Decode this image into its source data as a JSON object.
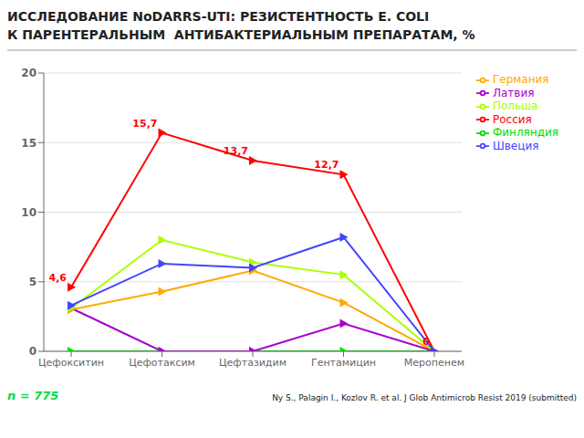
{
  "chart_data": {
    "type": "line",
    "title": "ИССЛЕДОВАНИЕ NoDARRS-UTI: РЕЗИСТЕНТНОСТЬ E. COLI",
    "subtitle": "К ПАРЕНТЕРАЛЬНЫМ  АНТИБАКТЕРИАЛЬНЫМ ПРЕПАРАТАМ, %",
    "categories": [
      "Цефокситин",
      "Цефотаксим",
      "Цефтазидим",
      "Гентамицин",
      "Меропенем"
    ],
    "series": [
      {
        "name": "Финляндия",
        "color": "#00dd00",
        "marker": "triangle_right",
        "values": [
          0.0,
          0.0,
          0.0,
          0.0,
          0.0
        ]
      },
      {
        "name": "Германия",
        "color": "#ffaa00",
        "marker": "triangle_right",
        "values": [
          3.0,
          4.3,
          5.8,
          3.5,
          0.0
        ]
      },
      {
        "name": "Латвия",
        "color": "#aa00cc",
        "marker": "triangle_right",
        "values": [
          3.1,
          0.0,
          0.0,
          2.0,
          0.0
        ]
      },
      {
        "name": "Польша",
        "color": "#aaff00",
        "marker": "triangle_right",
        "values": [
          3.1,
          8.0,
          6.4,
          5.5,
          0.0
        ]
      },
      {
        "name": "Россия",
        "color": "#ff0000",
        "marker": "triangle_right",
        "values": [
          4.6,
          15.7,
          13.7,
          12.7,
          0.0
        ]
      },
      {
        "name": "Швеция",
        "color": "#4444ff",
        "marker": "triangle_right",
        "values": [
          3.3,
          6.3,
          6.0,
          8.2,
          0.0
        ]
      }
    ],
    "ylim": [
      0,
      20
    ],
    "yticks": [
      0,
      5,
      10,
      15,
      20
    ],
    "grid": true,
    "legend": "right",
    "annotations": [
      {
        "x": "Цефокситин",
        "y": 4.6,
        "text": "4,6",
        "color": "#ff0000"
      },
      {
        "x": "Цефотаксим",
        "y": 15.7,
        "text": "15,7",
        "color": "#ff0000"
      },
      {
        "x": "Цефтазидим",
        "y": 13.7,
        "text": "13,7",
        "color": "#ff0000"
      },
      {
        "x": "Гентамицин",
        "y": 12.7,
        "text": "12,7",
        "color": "#ff0000"
      },
      {
        "x": "Меропенем",
        "y": 0.0,
        "text": "0",
        "color": "#ff0000"
      },
      {
        "text": "n = 775",
        "color": "#00dd44"
      },
      {
        "text": "Ny S., Palagin I., Kozlov R. et al. J Glob Antimicrob Resist 2019 (submitted)"
      }
    ]
  }
}
